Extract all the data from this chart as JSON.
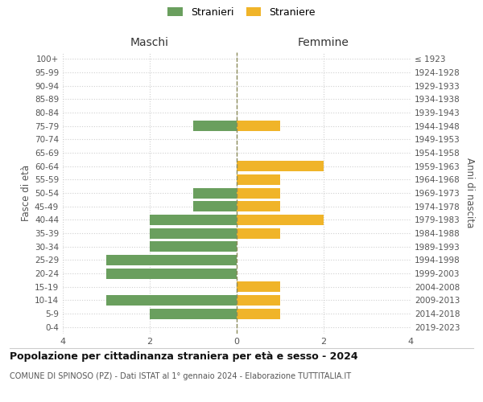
{
  "age_groups": [
    "0-4",
    "5-9",
    "10-14",
    "15-19",
    "20-24",
    "25-29",
    "30-34",
    "35-39",
    "40-44",
    "45-49",
    "50-54",
    "55-59",
    "60-64",
    "65-69",
    "70-74",
    "75-79",
    "80-84",
    "85-89",
    "90-94",
    "95-99",
    "100+"
  ],
  "birth_years": [
    "2019-2023",
    "2014-2018",
    "2009-2013",
    "2004-2008",
    "1999-2003",
    "1994-1998",
    "1989-1993",
    "1984-1988",
    "1979-1983",
    "1974-1978",
    "1969-1973",
    "1964-1968",
    "1959-1963",
    "1954-1958",
    "1949-1953",
    "1944-1948",
    "1939-1943",
    "1934-1938",
    "1929-1933",
    "1924-1928",
    "≤ 1923"
  ],
  "males": [
    0,
    2,
    3,
    0,
    3,
    3,
    2,
    2,
    2,
    1,
    1,
    0,
    0,
    0,
    0,
    1,
    0,
    0,
    0,
    0,
    0
  ],
  "females": [
    0,
    1,
    1,
    1,
    0,
    0,
    0,
    1,
    2,
    1,
    1,
    1,
    2,
    0,
    0,
    1,
    0,
    0,
    0,
    0,
    0
  ],
  "male_color": "#6a9f5e",
  "female_color": "#f0b429",
  "center_line_color": "#8b8b5a",
  "grid_color": "#d0d0d0",
  "title": "Popolazione per cittadinanza straniera per età e sesso - 2024",
  "subtitle": "COMUNE DI SPINOSO (PZ) - Dati ISTAT al 1° gennaio 2024 - Elaborazione TUTTITALIA.IT",
  "xlabel_left": "Maschi",
  "xlabel_right": "Femmine",
  "ylabel_left": "Fasce di età",
  "ylabel_right": "Anni di nascita",
  "legend_male": "Stranieri",
  "legend_female": "Straniere",
  "xlim": 4,
  "background_color": "#ffffff"
}
